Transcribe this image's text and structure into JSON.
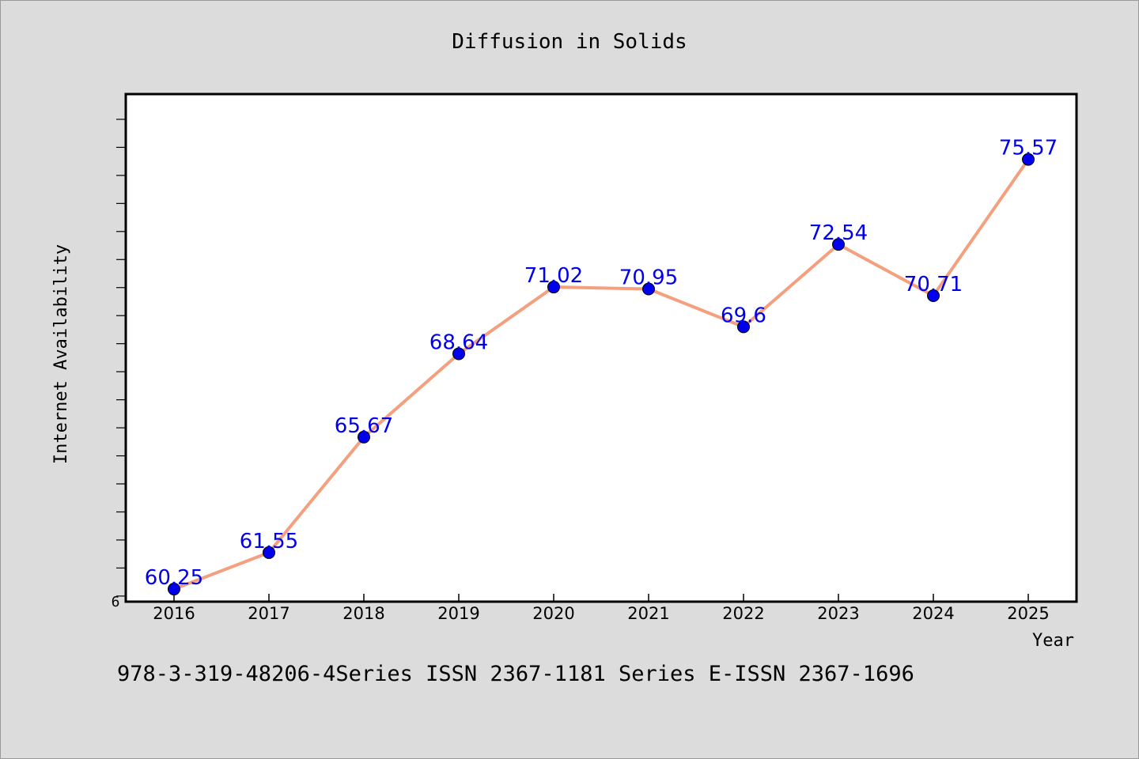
{
  "chart_data": {
    "type": "line",
    "title": "Diffusion in Solids",
    "xlabel": "Year",
    "ylabel": "Internet Availability",
    "categories": [
      "2016",
      "2017",
      "2018",
      "2019",
      "2020",
      "2021",
      "2022",
      "2023",
      "2024",
      "2025"
    ],
    "series": [
      {
        "values": [
          60.25,
          61.55,
          65.67,
          68.64,
          71.02,
          70.95,
          69.6,
          72.54,
          70.71,
          75.57
        ],
        "data_labels": [
          "60.25",
          "61.55",
          "65.67",
          "68.64",
          "71.02",
          "70.95",
          "69.6",
          "72.54",
          "70.71",
          "75.57"
        ],
        "line_color": "#f4a07f",
        "marker_color": "#0000ee"
      }
    ],
    "ylim": [
      59.8,
      77.9
    ],
    "y_tick_label": "6",
    "y_minor_tick_step": 1,
    "grid": false,
    "legend": "none",
    "label_color": "#0000ee",
    "footer": "978-3-319-48206-4Series ISSN 2367-1181 Series E-ISSN 2367-1696"
  }
}
